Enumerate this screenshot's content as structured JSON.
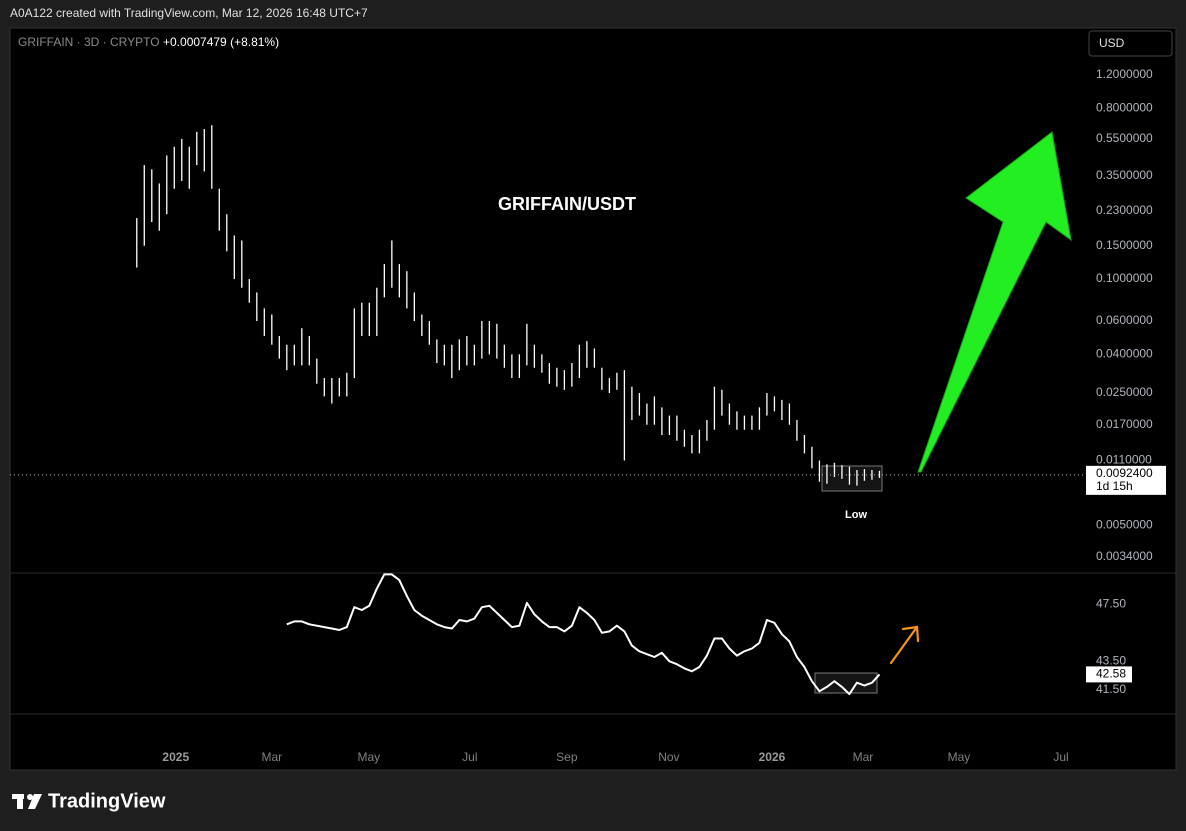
{
  "header": {
    "credit": "A0A122 created with TradingView.com, Mar 12, 2026 16:48 UTC+7",
    "symbol": "GRIFFAIN · 3D · CRYPTO",
    "change": "+0.0007479 (+8.81%)",
    "currency": "USD"
  },
  "footer": {
    "brand": "TradingView"
  },
  "chart_data": [
    {
      "type": "hilo",
      "title": "GRIFFAIN/USDT",
      "color": "#ffffff",
      "log_scale": true,
      "annotations": [
        {
          "text": "Low"
        }
      ],
      "categories": [
        null,
        null,
        null,
        null,
        null,
        null,
        null,
        null,
        null,
        null,
        null,
        null,
        null,
        null,
        null,
        null,
        null,
        null,
        null,
        null,
        null,
        null,
        null,
        null,
        null,
        null,
        null,
        null,
        null,
        null,
        null,
        null,
        null,
        null,
        null,
        null,
        null,
        null,
        null,
        null,
        null,
        null,
        null,
        null,
        null,
        null,
        null,
        null,
        null,
        null,
        null,
        null,
        null,
        null,
        null,
        null,
        null,
        null,
        null,
        null,
        null,
        null,
        null,
        null,
        null,
        null,
        null,
        null,
        null,
        null,
        null,
        null,
        null,
        null,
        null,
        null,
        null,
        null,
        null,
        null,
        null,
        null,
        null,
        null,
        null,
        null,
        null,
        null,
        null,
        null,
        null,
        null,
        null,
        null,
        null,
        null,
        null,
        null,
        null,
        null
      ],
      "high": [
        0.21,
        0.4,
        0.38,
        0.32,
        0.45,
        0.5,
        0.55,
        0.5,
        0.6,
        0.62,
        0.65,
        0.3,
        0.22,
        0.17,
        0.16,
        0.1,
        0.085,
        0.07,
        0.065,
        0.05,
        0.045,
        0.045,
        0.055,
        0.05,
        0.038,
        0.03,
        0.03,
        0.03,
        0.032,
        0.07,
        0.075,
        0.075,
        0.09,
        0.12,
        0.16,
        0.12,
        0.11,
        0.085,
        0.065,
        0.06,
        0.048,
        0.045,
        0.045,
        0.048,
        0.05,
        0.045,
        0.06,
        0.06,
        0.058,
        0.045,
        0.04,
        0.04,
        0.058,
        0.045,
        0.04,
        0.036,
        0.034,
        0.033,
        0.036,
        0.045,
        0.047,
        0.043,
        0.034,
        0.03,
        0.032,
        0.033,
        0.027,
        0.025,
        0.022,
        0.024,
        0.021,
        0.019,
        0.019,
        0.016,
        0.015,
        0.016,
        0.018,
        0.027,
        0.026,
        0.022,
        0.02,
        0.019,
        0.019,
        0.021,
        0.025,
        0.024,
        0.023,
        0.022,
        0.018,
        0.015,
        0.013,
        0.011,
        0.0105,
        0.0107,
        0.0104,
        0.0102,
        0.0098,
        0.0099,
        0.0098,
        0.0097
      ],
      "low": [
        0.115,
        0.15,
        0.2,
        0.18,
        0.22,
        0.3,
        0.33,
        0.3,
        0.4,
        0.37,
        0.3,
        0.18,
        0.14,
        0.1,
        0.09,
        0.075,
        0.06,
        0.05,
        0.045,
        0.038,
        0.033,
        0.035,
        0.035,
        0.035,
        0.028,
        0.024,
        0.022,
        0.024,
        0.024,
        0.03,
        0.05,
        0.05,
        0.05,
        0.08,
        0.09,
        0.08,
        0.07,
        0.06,
        0.05,
        0.045,
        0.036,
        0.035,
        0.03,
        0.033,
        0.035,
        0.035,
        0.038,
        0.04,
        0.038,
        0.034,
        0.03,
        0.03,
        0.035,
        0.034,
        0.032,
        0.028,
        0.027,
        0.026,
        0.027,
        0.03,
        0.034,
        0.034,
        0.026,
        0.025,
        0.026,
        0.011,
        0.018,
        0.019,
        0.017,
        0.017,
        0.015,
        0.015,
        0.014,
        0.013,
        0.012,
        0.012,
        0.014,
        0.016,
        0.019,
        0.017,
        0.016,
        0.016,
        0.016,
        0.016,
        0.019,
        0.02,
        0.018,
        0.017,
        0.014,
        0.012,
        0.01,
        0.0085,
        0.0083,
        0.009,
        0.0088,
        0.0082,
        0.0081,
        0.0086,
        0.0087,
        0.0089
      ],
      "last_price": {
        "value": 0.00924,
        "label": "0.0092400"
      },
      "countdown": "1d 15h",
      "xlim": [
        -16.9,
        126.4
      ],
      "ylim": [
        0.0028,
        2.12
      ],
      "yticks": [
        {
          "value": 1.2,
          "label": "1.2000000"
        },
        {
          "value": 0.8,
          "label": "0.8000000"
        },
        {
          "value": 0.55,
          "label": "0.5500000"
        },
        {
          "value": 0.35,
          "label": "0.3500000"
        },
        {
          "value": 0.23,
          "label": "0.2300000"
        },
        {
          "value": 0.15,
          "label": "0.1500000"
        },
        {
          "value": 0.1,
          "label": "0.1000000"
        },
        {
          "value": 0.06,
          "label": "0.0600000"
        },
        {
          "value": 0.04,
          "label": "0.0400000"
        },
        {
          "value": 0.025,
          "label": "0.0250000"
        },
        {
          "value": 0.017,
          "label": "0.0170000"
        },
        {
          "value": 0.011,
          "label": "0.0110000"
        },
        {
          "value": 0.005,
          "label": "0.0050000"
        },
        {
          "value": 0.0034,
          "label": "0.0034000"
        }
      ]
    },
    {
      "type": "line",
      "color": "#ffffff",
      "categories": [
        null,
        null,
        null,
        null,
        null,
        null,
        null,
        null,
        null,
        null,
        null,
        null,
        null,
        null,
        null,
        null,
        null,
        null,
        null,
        null,
        null,
        null,
        null,
        null,
        null,
        null,
        null,
        null,
        null,
        null,
        null,
        null,
        null,
        null,
        null,
        null,
        null,
        null,
        null,
        null,
        null,
        null,
        null,
        null,
        null,
        null,
        null,
        null,
        null,
        null,
        null,
        null,
        null,
        null,
        null,
        null,
        null,
        null,
        null,
        null,
        null,
        null,
        null,
        null,
        null,
        null,
        null,
        null,
        null,
        null,
        null,
        null,
        null,
        null,
        null,
        null,
        null,
        null,
        null,
        null,
        null,
        null,
        null,
        null,
        null,
        null,
        null,
        null,
        null,
        null,
        null,
        null,
        null,
        null,
        null,
        null,
        null,
        null,
        null,
        null
      ],
      "values": [
        null,
        null,
        null,
        null,
        null,
        null,
        null,
        null,
        null,
        null,
        null,
        null,
        null,
        null,
        null,
        null,
        null,
        null,
        null,
        null,
        46.1,
        46.3,
        46.3,
        46.1,
        46.0,
        45.9,
        45.8,
        45.7,
        45.9,
        47.3,
        47.1,
        47.4,
        48.6,
        49.6,
        49.6,
        49.2,
        48.1,
        47.1,
        46.7,
        46.4,
        46.1,
        45.9,
        45.8,
        46.4,
        46.3,
        46.5,
        47.3,
        47.4,
        46.9,
        46.4,
        45.9,
        46.0,
        47.6,
        46.8,
        46.3,
        45.9,
        45.9,
        45.6,
        46.0,
        47.3,
        46.9,
        46.4,
        45.5,
        45.6,
        46.0,
        45.6,
        44.6,
        44.2,
        44.0,
        43.8,
        44.1,
        43.5,
        43.3,
        43.0,
        42.8,
        43.1,
        43.9,
        45.1,
        45.1,
        44.4,
        43.9,
        44.2,
        44.4,
        44.8,
        46.4,
        46.2,
        45.4,
        44.9,
        43.8,
        43.1,
        42.1,
        41.4,
        41.7,
        42.1,
        41.7,
        41.2,
        42.0,
        41.8,
        42.0,
        42.58
      ],
      "xlim": [
        -16.9,
        126.4
      ],
      "xticks": [
        {
          "value": 5.2,
          "label": "2025"
        },
        {
          "value": 18,
          "label": "Mar"
        },
        {
          "value": 30.93,
          "label": "May"
        },
        {
          "value": 44.4,
          "label": "Jul"
        },
        {
          "value": 57.33,
          "label": "Sep"
        },
        {
          "value": 70.93,
          "label": "Nov"
        },
        {
          "value": 84.67,
          "label": "2026"
        },
        {
          "value": 96.8,
          "label": "Mar"
        },
        {
          "value": 109.6,
          "label": "May"
        },
        {
          "value": 123.2,
          "label": "Jul"
        }
      ],
      "ylim": [
        39.8,
        49.7
      ],
      "yticks": [
        {
          "value": 47.5,
          "label": "47.50"
        },
        {
          "value": 43.5,
          "label": "43.50"
        },
        {
          "value": 41.5,
          "label": "41.50"
        }
      ]
    }
  ]
}
